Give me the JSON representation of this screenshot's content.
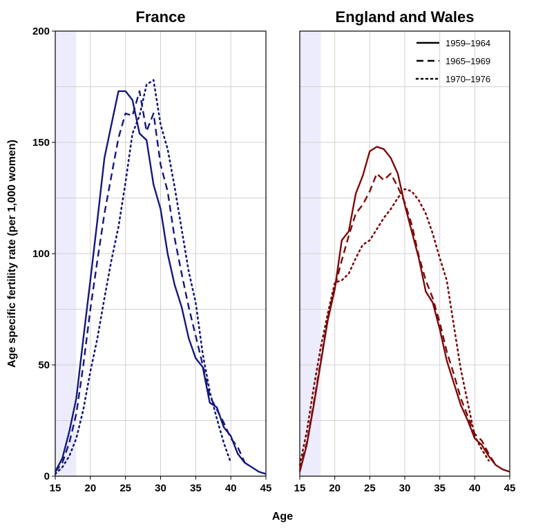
{
  "chart_data": {
    "type": "line",
    "ylabel": "Age specific fertility rate (per 1,000 women)",
    "xlabel": "Age",
    "xlim": [
      15,
      45
    ],
    "ylim": [
      0,
      200
    ],
    "x_ticks": [
      15,
      20,
      25,
      30,
      35,
      40,
      45
    ],
    "y_ticks": [
      0,
      50,
      100,
      150,
      200
    ],
    "shaded_band": [
      15,
      18
    ],
    "legend": [
      {
        "name": "1959–1964",
        "style": "solid"
      },
      {
        "name": "1965–1969",
        "style": "dashed"
      },
      {
        "name": "1970–1976",
        "style": "dotted"
      }
    ],
    "panels": [
      {
        "title": "France",
        "color": "#15187a",
        "series": [
          {
            "name": "1959–1964",
            "style": "solid",
            "x": [
              15,
              16,
              17,
              18,
              19,
              20,
              21,
              22,
              23,
              24,
              25,
              26,
              27,
              28,
              29,
              30,
              31,
              32,
              33,
              34,
              35,
              36,
              37,
              38,
              39,
              40,
              41,
              42,
              43,
              44,
              45
            ],
            "y": [
              2,
              8,
              20,
              35,
              62,
              88,
              115,
              143,
              158,
              173,
              173,
              169,
              154,
              151,
              131,
              120,
              100,
              86,
              76,
              62,
              53,
              49,
              33,
              31,
              22,
              18,
              10,
              6,
              4,
              2,
              1
            ]
          },
          {
            "name": "1965–1969",
            "style": "dashed",
            "x": [
              15,
              16,
              17,
              18,
              19,
              20,
              21,
              22,
              23,
              24,
              25,
              26,
              27,
              28,
              29,
              30,
              31,
              32,
              33,
              34,
              35,
              36,
              37,
              38,
              39,
              40,
              41,
              42
            ],
            "y": [
              2,
              6,
              15,
              28,
              50,
              75,
              97,
              118,
              135,
              152,
              163,
              162,
              173,
              155,
              163,
              140,
              128,
              107,
              91,
              76,
              63,
              50,
              36,
              30,
              24,
              17,
              13,
              6
            ]
          },
          {
            "name": "1970–1976",
            "style": "dotted",
            "x": [
              15,
              16,
              17,
              18,
              19,
              20,
              21,
              22,
              23,
              24,
              25,
              26,
              27,
              28,
              29,
              30,
              31,
              32,
              33,
              34,
              35,
              36,
              37,
              38,
              39,
              40
            ],
            "y": [
              1,
              4,
              9,
              17,
              30,
              47,
              62,
              80,
              97,
              112,
              132,
              154,
              162,
              176,
              178,
              158,
              147,
              130,
              111,
              92,
              78,
              55,
              38,
              26,
              15,
              6
            ]
          }
        ]
      },
      {
        "title": "England and Wales",
        "color": "#7d0a0a",
        "series": [
          {
            "name": "1959–1964",
            "style": "solid",
            "x": [
              15,
              16,
              17,
              18,
              19,
              20,
              21,
              22,
              23,
              24,
              25,
              26,
              27,
              28,
              29,
              30,
              31,
              32,
              33,
              34,
              35,
              36,
              37,
              38,
              39,
              40,
              41,
              42,
              43,
              44,
              45
            ],
            "y": [
              2,
              14,
              32,
              51,
              70,
              84,
              106,
              110,
              127,
              135,
              146,
              148,
              147,
              143,
              136,
              122,
              110,
              98,
              83,
              78,
              66,
              52,
              42,
              32,
              25,
              17,
              14,
              9,
              5,
              3,
              2
            ]
          },
          {
            "name": "1965–1969",
            "style": "dashed",
            "x": [
              15,
              16,
              17,
              18,
              19,
              20,
              21,
              22,
              23,
              24,
              25,
              26,
              27,
              28,
              29,
              30,
              31,
              32,
              33,
              34,
              35,
              36,
              37,
              38,
              39,
              40,
              41,
              42,
              43
            ],
            "y": [
              3,
              15,
              33,
              52,
              71,
              85,
              97,
              108,
              118,
              122,
              128,
              136,
              133,
              136,
              130,
              123,
              113,
              99,
              88,
              80,
              69,
              56,
              46,
              35,
              27,
              19,
              16,
              10,
              5
            ]
          },
          {
            "name": "1970–1976",
            "style": "dotted",
            "x": [
              15,
              16,
              17,
              18,
              19,
              20,
              21,
              22,
              23,
              24,
              25,
              26,
              27,
              28,
              29,
              30,
              31,
              32,
              33,
              34,
              35,
              36,
              37,
              38,
              39,
              40,
              41,
              42
            ],
            "y": [
              5,
              20,
              40,
              58,
              73,
              87,
              88,
              91,
              98,
              104,
              106,
              111,
              116,
              120,
              125,
              129,
              128,
              124,
              118,
              109,
              98,
              88,
              68,
              48,
              33,
              18,
              12,
              7
            ]
          }
        ]
      }
    ]
  }
}
